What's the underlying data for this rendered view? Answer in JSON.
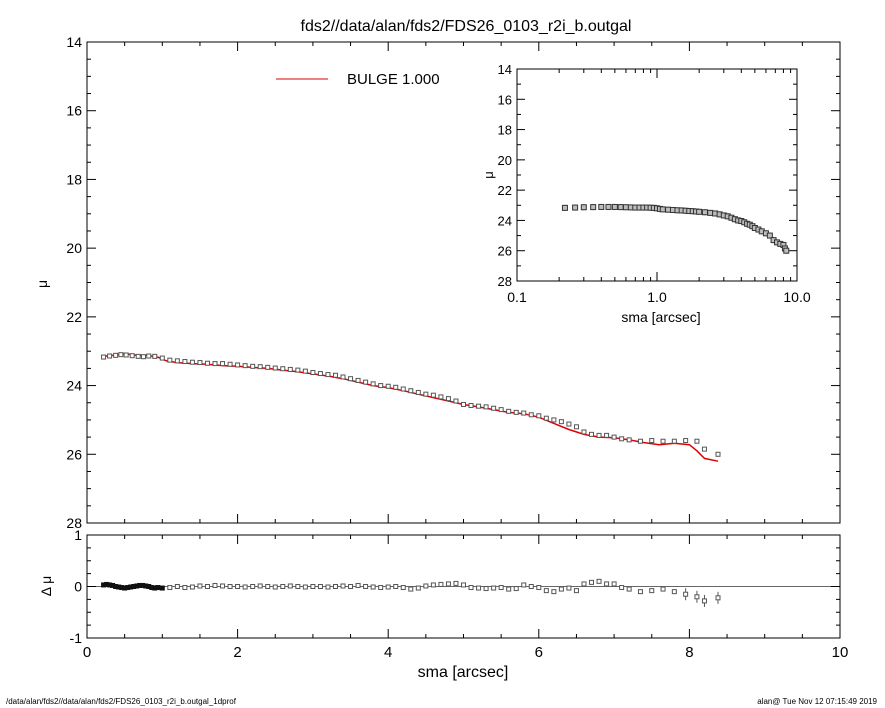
{
  "footer": {
    "left": "/data/alan/fds2//data/alan/fds2/FDS26_0103_r2i_b.outgal_1dprof",
    "right": "alan@  Tue Nov 12 07:15:49 2019"
  },
  "colors": {
    "axes": "#000000",
    "model": "#e00000",
    "points": "#555555",
    "zero_line": "#666666"
  },
  "chart_data": [
    {
      "type": "scatter",
      "title": "fds2//data/alan/fds2/FDS26_0103_r2i_b.outgal",
      "xlabel": "sma [arcsec]",
      "ylabel": "μ",
      "xlim": [
        0,
        10
      ],
      "ylim": [
        28,
        14
      ],
      "y_inverted": true,
      "x_ticks": [
        "0",
        "2",
        "4",
        "6",
        "8",
        "10"
      ],
      "y_ticks": [
        "14",
        "16",
        "18",
        "20",
        "22",
        "24",
        "26",
        "28"
      ],
      "legend": {
        "label": "BULGE  1.000",
        "position": "top-center"
      },
      "series": [
        {
          "name": "BULGE  1.000",
          "kind": "line",
          "color": "#e00000",
          "x": [
            0.22,
            0.35,
            0.5,
            0.65,
            0.8,
            0.95,
            1.05,
            1.2,
            1.4,
            1.6,
            1.8,
            2.0,
            2.2,
            2.4,
            2.6,
            2.8,
            3.0,
            3.2,
            3.4,
            3.6,
            3.8,
            4.0,
            4.2,
            4.4,
            4.6,
            4.8,
            5.0,
            5.2,
            5.4,
            5.6,
            5.8,
            6.0,
            6.2,
            6.4,
            6.6,
            6.8,
            7.0,
            7.2,
            7.4,
            7.6,
            7.8,
            8.0,
            8.1,
            8.2,
            8.38
          ],
          "y": [
            23.15,
            23.12,
            23.07,
            23.12,
            23.12,
            23.18,
            23.28,
            23.33,
            23.36,
            23.38,
            23.42,
            23.44,
            23.47,
            23.5,
            23.55,
            23.6,
            23.66,
            23.72,
            23.8,
            23.9,
            24.0,
            24.06,
            24.15,
            24.25,
            24.35,
            24.45,
            24.55,
            24.62,
            24.7,
            24.78,
            24.82,
            24.92,
            25.1,
            25.28,
            25.42,
            25.5,
            25.52,
            25.58,
            25.66,
            25.72,
            25.68,
            25.72,
            25.9,
            26.12,
            26.2
          ]
        },
        {
          "name": "",
          "kind": "points",
          "x": [
            0.22,
            0.3,
            0.38,
            0.45,
            0.52,
            0.6,
            0.68,
            0.75,
            0.82,
            0.9,
            1.0,
            1.1,
            1.2,
            1.3,
            1.4,
            1.5,
            1.6,
            1.7,
            1.8,
            1.9,
            2.0,
            2.1,
            2.2,
            2.3,
            2.4,
            2.5,
            2.6,
            2.7,
            2.8,
            2.9,
            3.0,
            3.1,
            3.2,
            3.3,
            3.4,
            3.5,
            3.6,
            3.7,
            3.8,
            3.9,
            4.0,
            4.1,
            4.2,
            4.3,
            4.4,
            4.5,
            4.6,
            4.7,
            4.8,
            4.9,
            5.0,
            5.1,
            5.2,
            5.3,
            5.4,
            5.5,
            5.6,
            5.7,
            5.8,
            5.9,
            6.0,
            6.1,
            6.2,
            6.3,
            6.4,
            6.5,
            6.6,
            6.7,
            6.8,
            6.9,
            7.0,
            7.1,
            7.2,
            7.35,
            7.5,
            7.65,
            7.8,
            7.95,
            8.1,
            8.2,
            8.38
          ],
          "y": [
            23.17,
            23.14,
            23.12,
            23.1,
            23.11,
            23.13,
            23.15,
            23.16,
            23.14,
            23.15,
            23.2,
            23.26,
            23.28,
            23.3,
            23.32,
            23.33,
            23.35,
            23.36,
            23.36,
            23.38,
            23.4,
            23.42,
            23.44,
            23.45,
            23.47,
            23.49,
            23.51,
            23.53,
            23.55,
            23.58,
            23.62,
            23.65,
            23.68,
            23.7,
            23.75,
            23.8,
            23.85,
            23.9,
            23.95,
            24.0,
            24.02,
            24.05,
            24.1,
            24.15,
            24.2,
            24.25,
            24.28,
            24.33,
            24.38,
            24.45,
            24.55,
            24.58,
            24.6,
            24.62,
            24.66,
            24.7,
            24.75,
            24.78,
            24.8,
            24.85,
            24.88,
            24.95,
            25.0,
            25.05,
            25.12,
            25.2,
            25.35,
            25.42,
            25.45,
            25.45,
            25.5,
            25.55,
            25.58,
            25.62,
            25.6,
            25.62,
            25.62,
            25.6,
            25.62,
            25.85,
            26.0
          ]
        }
      ]
    },
    {
      "type": "scatter",
      "xlabel": "sma [arcsec]",
      "ylabel": "μ",
      "xlim": [
        0.1,
        10
      ],
      "x_scale": "log",
      "ylim": [
        28,
        14
      ],
      "y_inverted": true,
      "x_ticks": [
        "0.1",
        "1.0",
        "10.0"
      ],
      "y_ticks": [
        "14",
        "16",
        "18",
        "20",
        "22",
        "24",
        "26",
        "28"
      ],
      "series": [
        {
          "name": "",
          "kind": "points",
          "x": [
            0.22,
            0.26,
            0.3,
            0.35,
            0.4,
            0.45,
            0.5,
            0.55,
            0.6,
            0.65,
            0.7,
            0.75,
            0.8,
            0.85,
            0.9,
            0.95,
            1.0,
            1.05,
            1.1,
            1.2,
            1.3,
            1.4,
            1.5,
            1.6,
            1.7,
            1.8,
            1.9,
            2.0,
            2.2,
            2.4,
            2.6,
            2.8,
            3.0,
            3.2,
            3.4,
            3.6,
            3.8,
            4.0,
            4.2,
            4.4,
            4.6,
            4.8,
            5.0,
            5.3,
            5.6,
            6.0,
            6.4,
            6.8,
            7.2,
            7.6,
            8.0,
            8.2,
            8.38
          ],
          "y": [
            23.17,
            23.15,
            23.13,
            23.12,
            23.11,
            23.11,
            23.11,
            23.12,
            23.13,
            23.14,
            23.15,
            23.15,
            23.15,
            23.15,
            23.16,
            23.17,
            23.2,
            23.24,
            23.27,
            23.29,
            23.31,
            23.33,
            23.34,
            23.36,
            23.38,
            23.39,
            23.41,
            23.43,
            23.46,
            23.5,
            23.54,
            23.6,
            23.67,
            23.73,
            23.82,
            23.92,
            24.0,
            24.04,
            24.12,
            24.22,
            24.28,
            24.38,
            24.5,
            24.6,
            24.72,
            24.85,
            25.0,
            25.3,
            25.45,
            25.55,
            25.62,
            25.85,
            26.0
          ]
        }
      ]
    },
    {
      "type": "scatter",
      "xlabel": "sma [arcsec]",
      "ylabel": "Δ μ",
      "xlim": [
        0,
        10
      ],
      "ylim": [
        -1,
        1
      ],
      "x_ticks": [
        "0",
        "2",
        "4",
        "6",
        "8",
        "10"
      ],
      "y_ticks": [
        "1",
        "0",
        "-1"
      ],
      "series": [
        {
          "name": "",
          "kind": "points",
          "x": [
            0.22,
            0.26,
            0.3,
            0.34,
            0.38,
            0.42,
            0.46,
            0.5,
            0.54,
            0.58,
            0.62,
            0.66,
            0.7,
            0.74,
            0.78,
            0.82,
            0.86,
            0.9,
            0.94,
            1.0,
            1.1,
            1.2,
            1.3,
            1.4,
            1.5,
            1.6,
            1.7,
            1.8,
            1.9,
            2.0,
            2.1,
            2.2,
            2.3,
            2.4,
            2.5,
            2.6,
            2.7,
            2.8,
            2.9,
            3.0,
            3.1,
            3.2,
            3.3,
            3.4,
            3.5,
            3.6,
            3.7,
            3.8,
            3.9,
            4.0,
            4.1,
            4.2,
            4.3,
            4.4,
            4.5,
            4.6,
            4.7,
            4.8,
            4.9,
            5.0,
            5.1,
            5.2,
            5.3,
            5.4,
            5.5,
            5.6,
            5.7,
            5.8,
            5.9,
            6.0,
            6.1,
            6.2,
            6.3,
            6.4,
            6.5,
            6.6,
            6.7,
            6.8,
            6.9,
            7.0,
            7.1,
            7.2,
            7.35,
            7.5,
            7.65,
            7.8,
            7.95,
            8.1,
            8.2,
            8.38
          ],
          "y": [
            0.03,
            0.04,
            0.03,
            0.02,
            0.0,
            -0.01,
            -0.02,
            -0.03,
            -0.02,
            -0.01,
            0.0,
            0.01,
            0.02,
            0.02,
            0.01,
            0.0,
            -0.02,
            -0.03,
            -0.02,
            -0.03,
            -0.02,
            0.0,
            -0.02,
            -0.01,
            0.01,
            0.0,
            0.02,
            0.01,
            0.0,
            0.0,
            -0.01,
            0.0,
            0.01,
            0.0,
            -0.01,
            0.0,
            0.01,
            0.0,
            -0.01,
            0.0,
            0.0,
            -0.01,
            0.0,
            0.01,
            0.0,
            0.02,
            0.0,
            -0.01,
            -0.02,
            -0.01,
            0.0,
            -0.02,
            -0.05,
            -0.03,
            0.01,
            0.03,
            0.04,
            0.05,
            0.06,
            0.03,
            -0.02,
            -0.03,
            -0.04,
            -0.03,
            -0.02,
            -0.05,
            -0.04,
            0.03,
            0.0,
            -0.02,
            -0.08,
            -0.1,
            -0.05,
            -0.03,
            -0.08,
            0.05,
            0.08,
            0.1,
            0.05,
            0.05,
            -0.02,
            -0.05,
            -0.1,
            -0.08,
            -0.05,
            -0.1,
            -0.15,
            -0.2,
            -0.28,
            -0.22
          ]
        }
      ]
    }
  ]
}
